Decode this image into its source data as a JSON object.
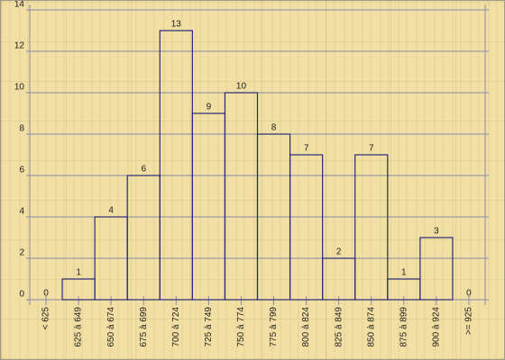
{
  "chart_data": {
    "type": "bar",
    "categories": [
      "< 625",
      "625 à 649",
      "650 à 674",
      "675 à 699",
      "700 à 724",
      "725 à 749",
      "750 à 774",
      "775 à 799",
      "800 à 824",
      "825 à 849",
      "850 à 874",
      "875 à 899",
      "900 à 924",
      ">= 925"
    ],
    "values": [
      0,
      1,
      4,
      6,
      13,
      9,
      10,
      8,
      7,
      2,
      7,
      1,
      3,
      0
    ],
    "color": "#2b2b7a",
    "ylim": [
      0,
      14
    ],
    "yticks": [
      0,
      2,
      4,
      6,
      8,
      10,
      12,
      14
    ],
    "grid": true
  }
}
